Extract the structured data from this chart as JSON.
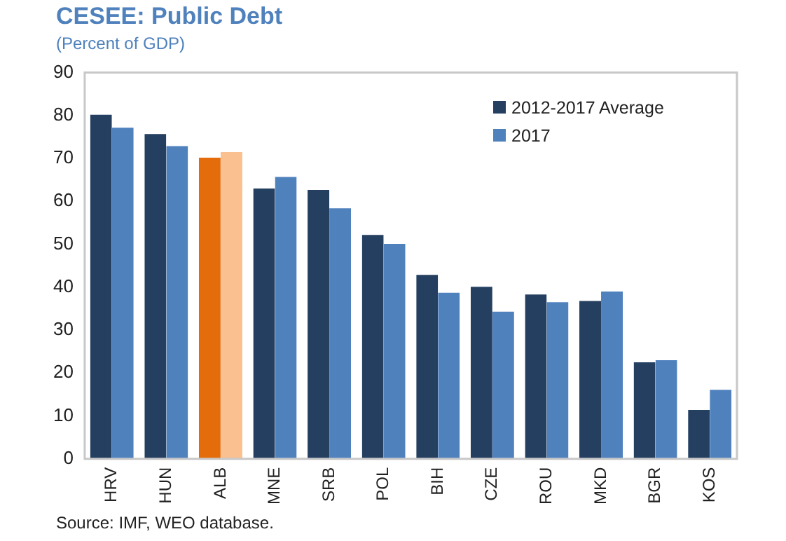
{
  "chart_data": {
    "type": "bar",
    "title": "CESEE: Public Debt",
    "subtitle": "(Percent of GDP)",
    "categories": [
      "HRV",
      "HUN",
      "ALB",
      "MNE",
      "SRB",
      "POL",
      "BIH",
      "CZE",
      "ROU",
      "MKD",
      "BGR",
      "KOS"
    ],
    "series": [
      {
        "name": "2012-2017 Average",
        "color": "#243f60",
        "colors": [
          "#243f60",
          "#243f60",
          "#e46c0a",
          "#243f60",
          "#243f60",
          "#243f60",
          "#243f60",
          "#243f60",
          "#243f60",
          "#243f60",
          "#243f60",
          "#243f60"
        ],
        "values": [
          80.5,
          76,
          70.5,
          63.3,
          63,
          52.5,
          43.2,
          40.4,
          38.6,
          37.1,
          22.8,
          11.7
        ]
      },
      {
        "name": "2017",
        "color": "#4f81bd",
        "colors": [
          "#4f81bd",
          "#4f81bd",
          "#fac090",
          "#4f81bd",
          "#4f81bd",
          "#4f81bd",
          "#4f81bd",
          "#4f81bd",
          "#4f81bd",
          "#4f81bd",
          "#4f81bd",
          "#4f81bd"
        ],
        "values": [
          77.5,
          73.2,
          71.8,
          66,
          58.7,
          50.4,
          39,
          34.6,
          36.8,
          39.3,
          23.3,
          16.4
        ]
      }
    ],
    "ylim": [
      0,
      90
    ],
    "yticks": [
      0,
      10,
      20,
      30,
      40,
      50,
      60,
      70,
      80,
      90
    ],
    "grid": false,
    "legend": "top right",
    "annotations": [
      "Source: IMF, WEO database."
    ]
  }
}
